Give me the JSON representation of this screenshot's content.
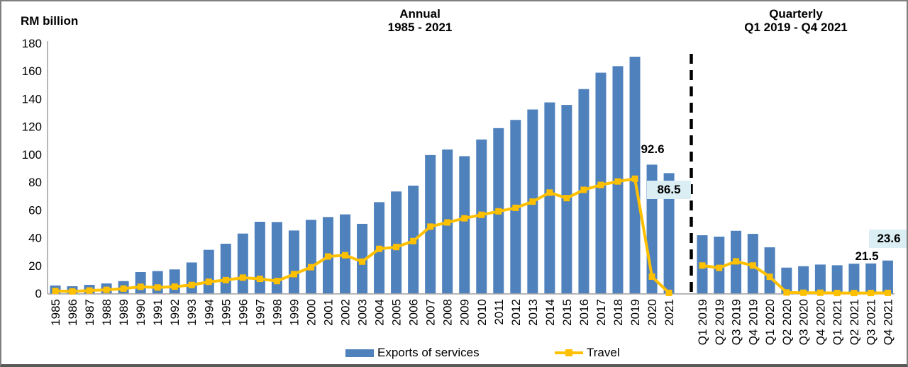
{
  "y_axis": {
    "label": "RM billion",
    "ticks": [
      180,
      160,
      140,
      120,
      100,
      80,
      60,
      40,
      20,
      0
    ]
  },
  "panels": {
    "annual": {
      "title": "Annual",
      "subtitle": "1985 - 2021"
    },
    "quarterly": {
      "title": "Quarterly",
      "subtitle": "Q1 2019 - Q4 2021"
    }
  },
  "legend": [
    {
      "label": "Exports of services",
      "type": "bar",
      "color": "#4F81BD"
    },
    {
      "label": "Travel",
      "type": "line",
      "color": "#FFC000"
    }
  ],
  "annotations": {
    "annual_2020": "92.6",
    "annual_2021": "86.5",
    "q3_2021": "21.5",
    "q4_2021": "23.6"
  },
  "colors": {
    "bar": "#4F81BD",
    "line": "#FFC000",
    "axis": "#A6A6A6",
    "separator": "#000000",
    "annotation_box_bg": "#DAEEF3",
    "text": "#000000"
  },
  "chart_data": [
    {
      "type": "bar",
      "title": "Annual 1985 - 2021",
      "ylabel": "RM billion",
      "ylim": [
        0,
        180
      ],
      "grid": false,
      "legend_position": "bottom",
      "categories": [
        "1985",
        "1986",
        "1987",
        "1988",
        "1989",
        "1990",
        "1991",
        "1992",
        "1993",
        "1994",
        "1995",
        "1996",
        "1997",
        "1998",
        "1999",
        "2000",
        "2001",
        "2002",
        "2003",
        "2004",
        "2005",
        "2006",
        "2007",
        "2008",
        "2009",
        "2010",
        "2011",
        "2012",
        "2013",
        "2014",
        "2015",
        "2016",
        "2017",
        "2018",
        "2019",
        "2020",
        "2021"
      ],
      "series": [
        {
          "name": "Exports of services",
          "type": "bar",
          "values": [
            5.6,
            5.1,
            6.1,
            7.1,
            8.8,
            15.3,
            16.0,
            17.2,
            22.2,
            31.3,
            35.7,
            43.0,
            51.5,
            51.3,
            45.2,
            52.9,
            54.9,
            56.8,
            50.0,
            65.6,
            73.3,
            77.5,
            99.5,
            103.5,
            98.7,
            110.7,
            118.9,
            124.8,
            132.3,
            137.4,
            135.6,
            147.0,
            158.8,
            163.5,
            170.3,
            92.6,
            86.5
          ]
        },
        {
          "name": "Travel",
          "type": "line",
          "values": [
            1.7,
            1.4,
            2.0,
            2.5,
            3.4,
            4.7,
            4.2,
            4.8,
            6.0,
            8.3,
            9.5,
            11.3,
            10.4,
            8.8,
            13.8,
            18.8,
            26.5,
            27.4,
            22.8,
            32.0,
            33.3,
            37.6,
            48.0,
            51.0,
            54.0,
            56.5,
            59.0,
            61.5,
            66.0,
            72.5,
            68.5,
            74.5,
            78.0,
            80.5,
            82.5,
            12.0,
            0.3
          ]
        }
      ]
    },
    {
      "type": "bar",
      "title": "Quarterly Q1 2019 - Q4 2021",
      "ylabel": "RM billion",
      "ylim": [
        0,
        180
      ],
      "grid": false,
      "legend_position": "bottom",
      "categories": [
        "Q1 2019",
        "Q2 2019",
        "Q3 2019",
        "Q4 2019",
        "Q1 2020",
        "Q2 2020",
        "Q3 2020",
        "Q4 2020",
        "Q1 2021",
        "Q2 2021",
        "Q3 2021",
        "Q4 2021"
      ],
      "series": [
        {
          "name": "Exports of services",
          "type": "bar",
          "values": [
            41.8,
            40.8,
            45.0,
            42.8,
            33.1,
            18.5,
            19.5,
            20.7,
            20.2,
            21.3,
            21.5,
            23.6
          ]
        },
        {
          "name": "Travel",
          "type": "line",
          "values": [
            20.0,
            18.3,
            23.0,
            20.0,
            11.9,
            0.6,
            0.4,
            0.4,
            0.2,
            0.2,
            0.2,
            0.3
          ]
        }
      ]
    }
  ]
}
